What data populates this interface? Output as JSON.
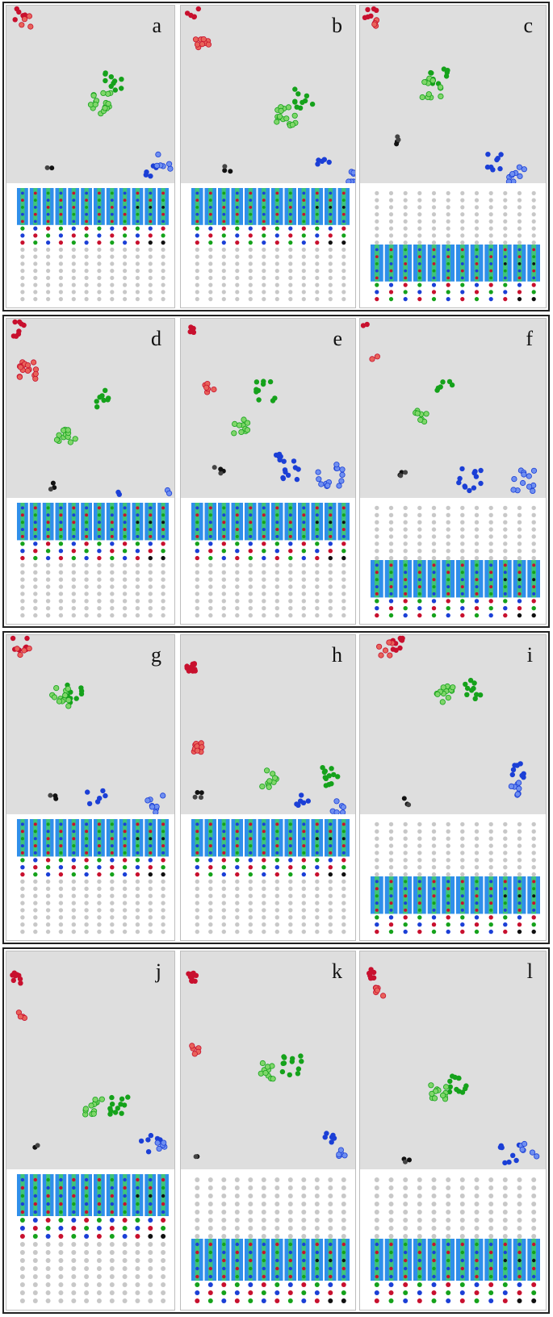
{
  "panels": [
    {
      "label": "a",
      "plate": "top",
      "clusters": [
        "dark-red",
        "light-red",
        "light-green",
        "dark-green",
        "black",
        "light-blue",
        "dark-blue"
      ]
    },
    {
      "label": "b",
      "plate": "top",
      "clusters": [
        "dark-red",
        "light-red",
        "light-green",
        "dark-green",
        "black",
        "light-blue",
        "dark-blue"
      ]
    },
    {
      "label": "c",
      "plate": "bottom",
      "clusters": [
        "dark-red",
        "light-red",
        "light-green",
        "dark-green",
        "black",
        "light-blue",
        "dark-blue"
      ]
    },
    {
      "label": "d",
      "plate": "top",
      "clusters": [
        "dark-red",
        "light-red",
        "light-green",
        "dark-green",
        "black",
        "light-blue",
        "dark-blue"
      ]
    },
    {
      "label": "e",
      "plate": "top",
      "clusters": [
        "dark-red",
        "light-red",
        "light-green",
        "dark-green",
        "black",
        "light-blue",
        "dark-blue"
      ]
    },
    {
      "label": "f",
      "plate": "bottom",
      "clusters": [
        "dark-red",
        "light-red",
        "light-green",
        "dark-green",
        "black",
        "light-blue",
        "dark-blue"
      ]
    },
    {
      "label": "g",
      "plate": "top",
      "clusters": [
        "dark-red",
        "light-red",
        "light-green",
        "dark-green",
        "black",
        "light-blue",
        "dark-blue"
      ]
    },
    {
      "label": "h",
      "plate": "top",
      "clusters": [
        "dark-red",
        "light-red",
        "light-green",
        "dark-green",
        "black",
        "light-blue",
        "dark-blue"
      ]
    },
    {
      "label": "i",
      "plate": "bottom",
      "clusters": [
        "dark-red",
        "light-red",
        "light-green",
        "dark-green",
        "black",
        "light-blue",
        "dark-blue"
      ]
    },
    {
      "label": "j",
      "plate": "top",
      "clusters": [
        "dark-red",
        "light-red",
        "light-green",
        "dark-green",
        "black",
        "light-blue",
        "dark-blue"
      ]
    },
    {
      "label": "k",
      "plate": "bottom",
      "clusters": [
        "dark-red",
        "light-red",
        "light-green",
        "dark-green",
        "black",
        "light-blue",
        "dark-blue"
      ]
    },
    {
      "label": "l",
      "plate": "bottom",
      "clusters": [
        "dark-red",
        "light-red",
        "light-green",
        "dark-green",
        "black",
        "light-blue",
        "dark-blue"
      ]
    }
  ],
  "colors": {
    "plot_background": "#dedede",
    "dark-red": "#c8102e",
    "light-red": "#e8635a",
    "dark-green": "#15a21b",
    "light-green": "#7fd66a",
    "dark-blue": "#1b3fd6",
    "light-blue": "#6f8ff0",
    "black": "#111111",
    "empty-well": "#c8c8c8",
    "highlight-column": "#2f8fea",
    "highlight-stripe": "#3ec47c"
  }
}
